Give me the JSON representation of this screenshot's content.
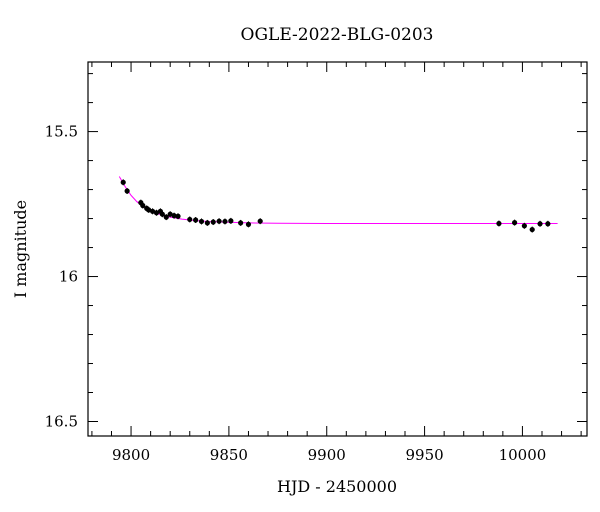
{
  "chart_data": {
    "type": "scatter",
    "title": "OGLE-2022-BLG-0203",
    "xlabel": "HJD - 2450000",
    "ylabel": "I magnitude",
    "xlim": [
      9778,
      10033
    ],
    "ylim": [
      16.55,
      15.26
    ],
    "y_inverted": true,
    "grid": false,
    "x_ticks": [
      9800,
      9850,
      9900,
      9950,
      10000
    ],
    "y_ticks": [
      15.5,
      16,
      16.5
    ],
    "colors": {
      "points": "#000000",
      "model": "#ff00ff"
    },
    "series": [
      {
        "type": "scatter",
        "points": [
          [
            9796,
            15.675
          ],
          [
            9798,
            15.705
          ],
          [
            9805,
            15.745
          ],
          [
            9806,
            15.755
          ],
          [
            9808,
            15.765
          ],
          [
            9809,
            15.77
          ],
          [
            9811,
            15.775
          ],
          [
            9813,
            15.78
          ],
          [
            9815,
            15.775
          ],
          [
            9816,
            15.785
          ],
          [
            9818,
            15.795
          ],
          [
            9820,
            15.785
          ],
          [
            9822,
            15.79
          ],
          [
            9824,
            15.792
          ],
          [
            9830,
            15.803
          ],
          [
            9833,
            15.805
          ],
          [
            9836,
            15.81
          ],
          [
            9839,
            15.815
          ],
          [
            9842,
            15.812
          ],
          [
            9845,
            15.809
          ],
          [
            9848,
            15.81
          ],
          [
            9851,
            15.808
          ],
          [
            9856,
            15.815
          ],
          [
            9860,
            15.82
          ],
          [
            9866,
            15.809
          ],
          [
            9988,
            15.817
          ],
          [
            9996,
            15.814
          ],
          [
            10001,
            15.825
          ],
          [
            10005,
            15.838
          ],
          [
            10009,
            15.818
          ],
          [
            10013,
            15.818
          ]
        ]
      },
      {
        "type": "line",
        "points": [
          [
            9794,
            15.655
          ],
          [
            9797,
            15.69
          ],
          [
            9800,
            15.72
          ],
          [
            9803,
            15.742
          ],
          [
            9806,
            15.758
          ],
          [
            9810,
            15.773
          ],
          [
            9815,
            15.786
          ],
          [
            9820,
            15.795
          ],
          [
            9826,
            15.802
          ],
          [
            9833,
            15.807
          ],
          [
            9840,
            15.81
          ],
          [
            9850,
            15.813
          ],
          [
            9860,
            15.815
          ],
          [
            9875,
            15.816
          ],
          [
            9900,
            15.817
          ],
          [
            9950,
            15.817
          ],
          [
            10000,
            15.817
          ],
          [
            10018,
            15.817
          ]
        ]
      }
    ]
  }
}
